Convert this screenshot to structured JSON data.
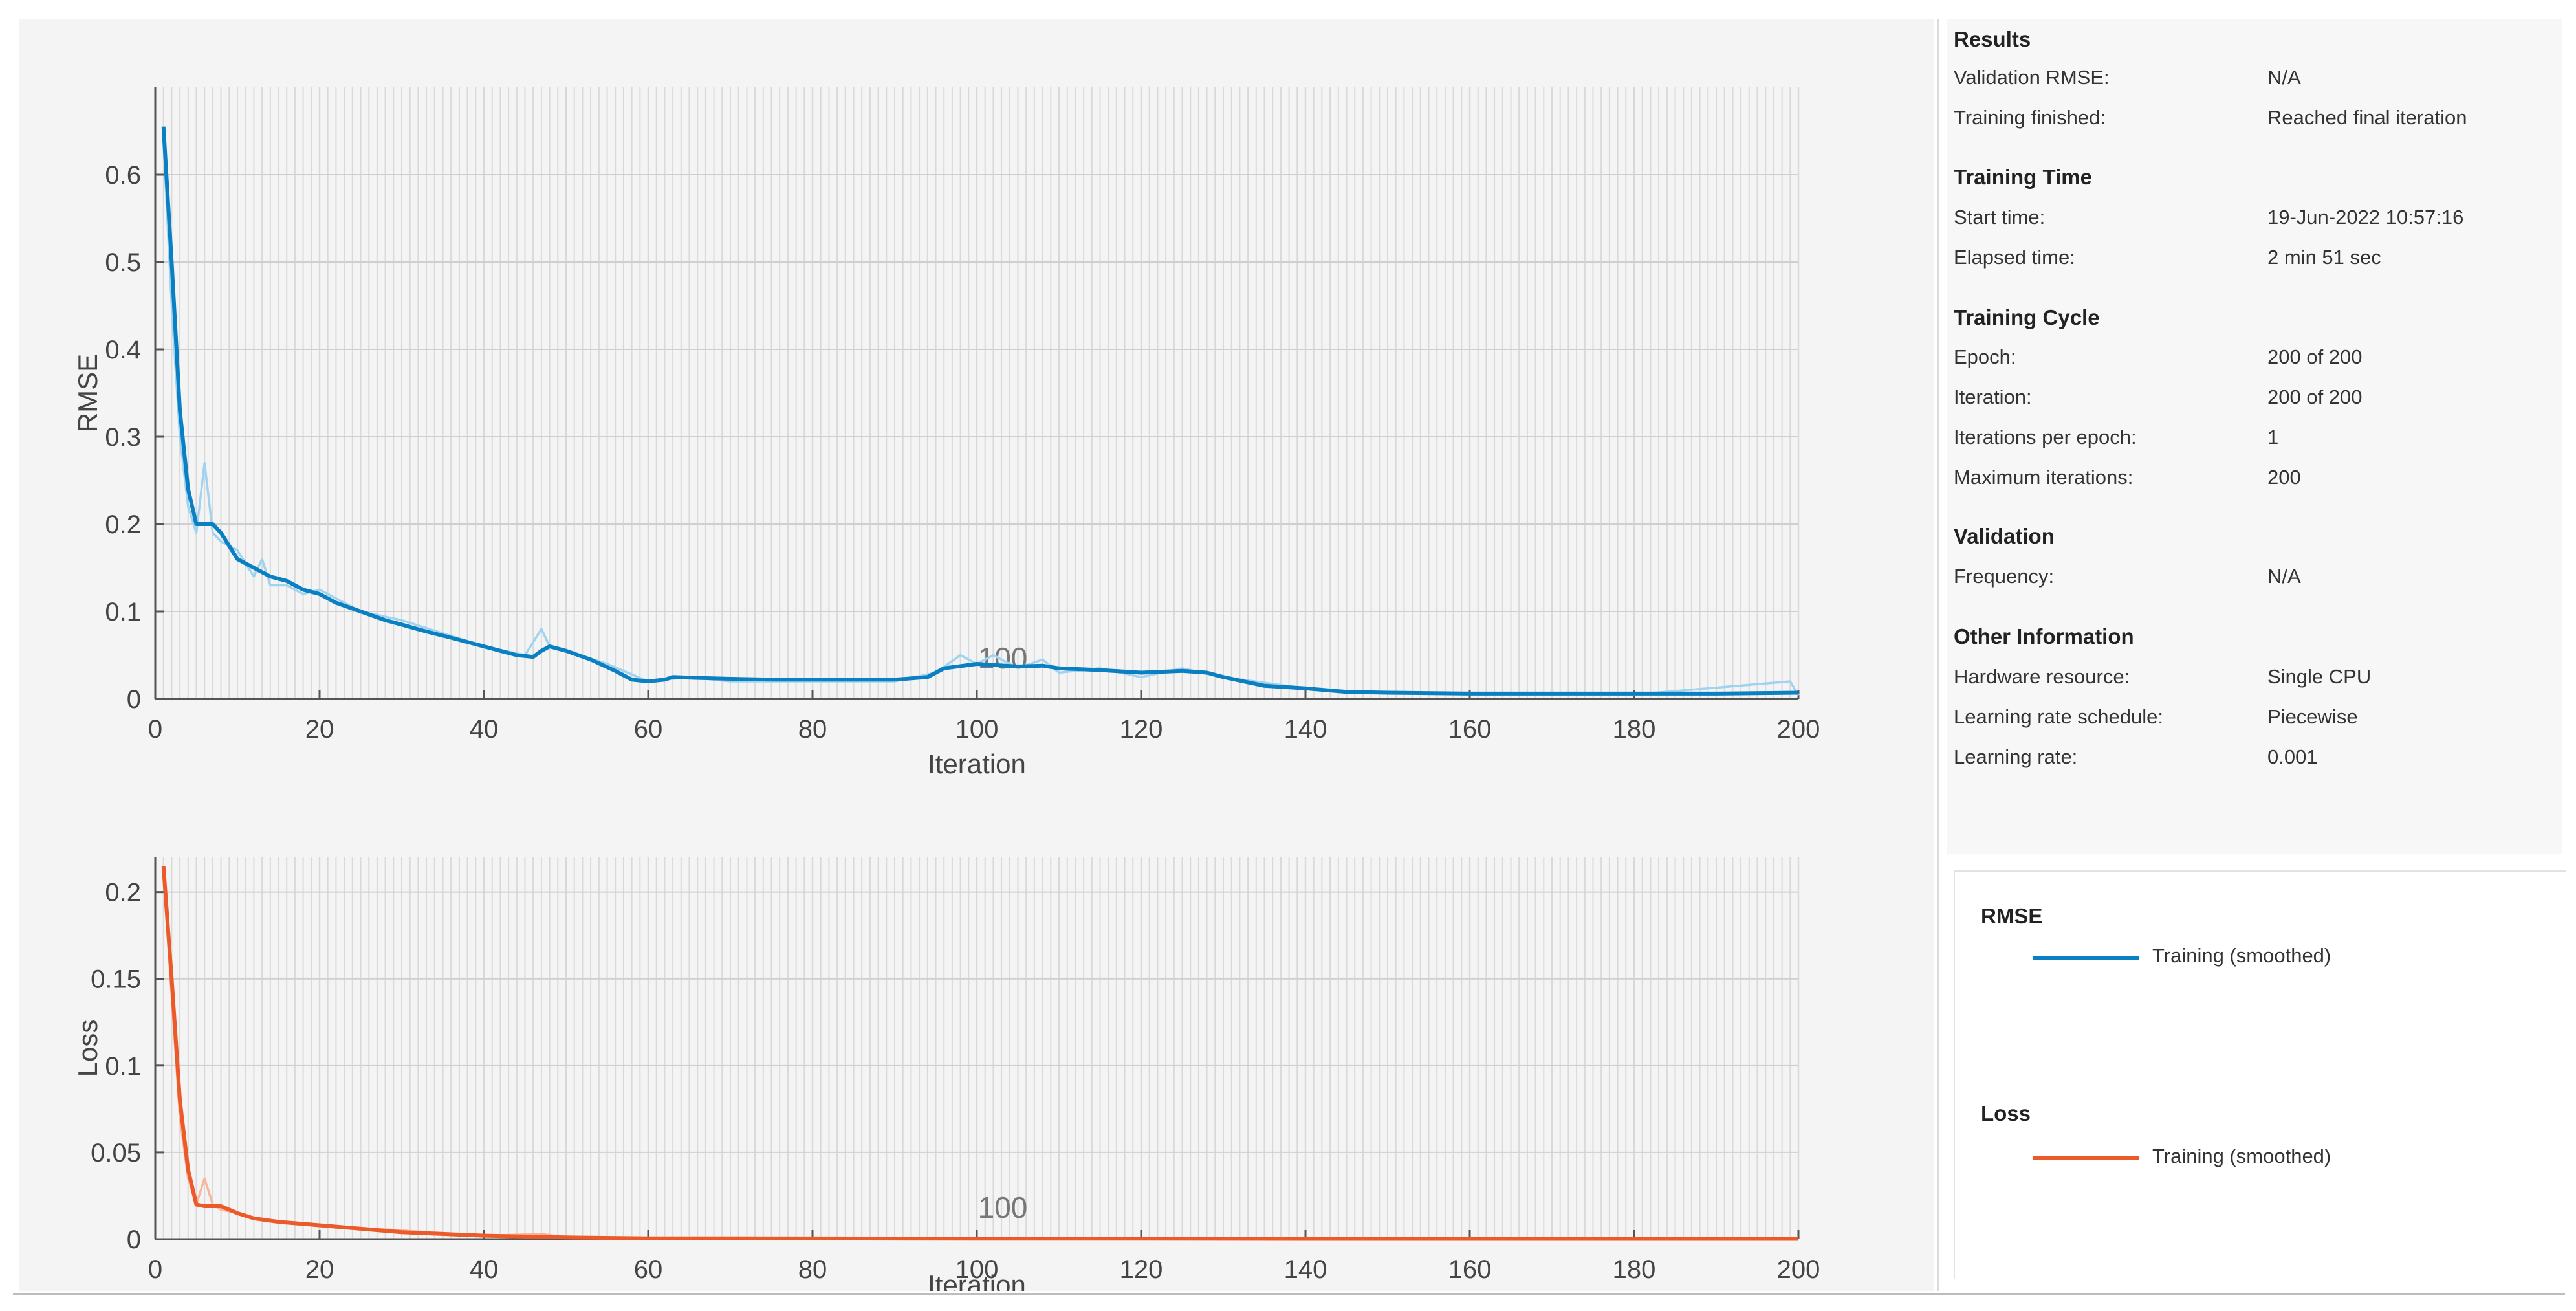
{
  "colors": {
    "rmse_smoothed": "#0a7fc2",
    "rmse_raw": "#9fd3f0",
    "loss_smoothed": "#ec5a2a",
    "loss_raw": "#f7b79c",
    "grid": "#d9d9d9",
    "axis": "#555555"
  },
  "chart_data": [
    {
      "type": "line",
      "ylabel": "RMSE",
      "xlabel": "Iteration",
      "xlim": [
        0,
        200
      ],
      "ylim": [
        0,
        0.7
      ],
      "xticks": [
        "0",
        "20",
        "40",
        "60",
        "80",
        "100",
        "120",
        "140",
        "160",
        "180",
        "200"
      ],
      "yticks": [
        "0",
        "0.1",
        "0.2",
        "0.3",
        "0.4",
        "0.5",
        "0.6"
      ],
      "ytick_values": [
        0,
        0.1,
        0.2,
        0.3,
        0.4,
        0.5,
        0.6
      ],
      "epoch_marker_label": "100",
      "grid": true,
      "series": [
        {
          "name": "Training (smoothed)",
          "x": [
            1,
            2,
            3,
            4,
            5,
            6,
            7,
            8,
            10,
            12,
            14,
            16,
            18,
            20,
            22,
            25,
            28,
            30,
            33,
            36,
            40,
            42,
            44,
            46,
            47,
            48,
            50,
            53,
            56,
            58,
            60,
            62,
            63,
            66,
            70,
            75,
            80,
            85,
            90,
            94,
            96,
            100,
            105,
            108,
            110,
            115,
            120,
            125,
            128,
            130,
            135,
            140,
            145,
            150,
            160,
            170,
            180,
            190,
            200
          ],
          "y": [
            0.655,
            0.5,
            0.33,
            0.24,
            0.2,
            0.2,
            0.2,
            0.19,
            0.16,
            0.15,
            0.14,
            0.135,
            0.125,
            0.12,
            0.11,
            0.1,
            0.09,
            0.085,
            0.077,
            0.07,
            0.06,
            0.055,
            0.05,
            0.048,
            0.055,
            0.06,
            0.055,
            0.045,
            0.032,
            0.022,
            0.02,
            0.022,
            0.025,
            0.024,
            0.023,
            0.022,
            0.022,
            0.022,
            0.022,
            0.025,
            0.035,
            0.04,
            0.037,
            0.038,
            0.035,
            0.033,
            0.03,
            0.032,
            0.03,
            0.025,
            0.015,
            0.012,
            0.008,
            0.007,
            0.006,
            0.006,
            0.006,
            0.006,
            0.007
          ]
        },
        {
          "name": "",
          "x": [
            1,
            2,
            3,
            4,
            5,
            6,
            7,
            8,
            10,
            12,
            13,
            14,
            16,
            18,
            20,
            25,
            30,
            40,
            45,
            47,
            48,
            50,
            55,
            60,
            65,
            70,
            80,
            90,
            95,
            98,
            100,
            102,
            105,
            108,
            110,
            115,
            120,
            125,
            130,
            140,
            150,
            160,
            180,
            199,
            200
          ],
          "y": [
            0.64,
            0.45,
            0.3,
            0.22,
            0.19,
            0.27,
            0.19,
            0.18,
            0.17,
            0.14,
            0.16,
            0.13,
            0.13,
            0.12,
            0.125,
            0.1,
            0.09,
            0.06,
            0.05,
            0.08,
            0.06,
            0.055,
            0.04,
            0.02,
            0.025,
            0.02,
            0.02,
            0.02,
            0.03,
            0.05,
            0.04,
            0.05,
            0.035,
            0.045,
            0.03,
            0.035,
            0.025,
            0.035,
            0.025,
            0.012,
            0.006,
            0.006,
            0.005,
            0.02,
            0.004
          ]
        }
      ]
    },
    {
      "type": "line",
      "ylabel": "Loss",
      "xlabel": "Iteration",
      "xlim": [
        0,
        200
      ],
      "ylim": [
        0,
        0.22
      ],
      "xticks": [
        "0",
        "20",
        "40",
        "60",
        "80",
        "100",
        "120",
        "140",
        "160",
        "180",
        "200"
      ],
      "yticks": [
        "0",
        "0.05",
        "0.1",
        "0.15",
        "0.2"
      ],
      "ytick_values": [
        0,
        0.05,
        0.1,
        0.15,
        0.2
      ],
      "epoch_marker_label": "100",
      "grid": true,
      "series": [
        {
          "name": "Training (smoothed)",
          "x": [
            1,
            2,
            3,
            4,
            5,
            6,
            7,
            8,
            10,
            12,
            15,
            20,
            25,
            30,
            40,
            50,
            60,
            80,
            100,
            120,
            140,
            160,
            180,
            200
          ],
          "y": [
            0.215,
            0.15,
            0.08,
            0.04,
            0.02,
            0.019,
            0.019,
            0.019,
            0.015,
            0.012,
            0.01,
            0.008,
            0.006,
            0.004,
            0.002,
            0.001,
            0.0005,
            0.0004,
            0.0003,
            0.0003,
            0.0002,
            0.0002,
            0.0002,
            0.0002
          ]
        },
        {
          "name": "",
          "x": [
            1,
            2,
            3,
            4,
            5,
            6,
            7,
            8,
            10,
            12,
            15,
            20,
            30,
            40,
            47,
            50,
            60,
            100,
            150,
            200
          ],
          "y": [
            0.21,
            0.14,
            0.07,
            0.035,
            0.02,
            0.035,
            0.02,
            0.017,
            0.015,
            0.012,
            0.01,
            0.008,
            0.005,
            0.002,
            0.003,
            0.001,
            0.0005,
            0.0003,
            0.0002,
            0.0002
          ]
        }
      ]
    }
  ],
  "results": {
    "title": "Results",
    "validation_rmse_label": "Validation RMSE:",
    "validation_rmse_value": "N/A",
    "training_finished_label": "Training finished:",
    "training_finished_value": "Reached final iteration"
  },
  "training_time": {
    "title": "Training Time",
    "start_time_label": "Start time:",
    "start_time_value": "19-Jun-2022 10:57:16",
    "elapsed_time_label": "Elapsed time:",
    "elapsed_time_value": "2 min 51 sec"
  },
  "training_cycle": {
    "title": "Training Cycle",
    "epoch_label": "Epoch:",
    "epoch_value": "200 of 200",
    "iteration_label": "Iteration:",
    "iteration_value": "200 of 200",
    "iterations_per_epoch_label": "Iterations per epoch:",
    "iterations_per_epoch_value": "1",
    "max_iterations_label": "Maximum iterations:",
    "max_iterations_value": "200"
  },
  "validation": {
    "title": "Validation",
    "frequency_label": "Frequency:",
    "frequency_value": "N/A"
  },
  "other_info": {
    "title": "Other Information",
    "hardware_label": "Hardware resource:",
    "hardware_value": "Single CPU",
    "lr_schedule_label": "Learning rate schedule:",
    "lr_schedule_value": "Piecewise",
    "lr_label": "Learning rate:",
    "lr_value": "0.001"
  },
  "legend": {
    "rmse_title": "RMSE",
    "rmse_entry": "Training (smoothed)",
    "loss_title": "Loss",
    "loss_entry": "Training (smoothed)"
  }
}
